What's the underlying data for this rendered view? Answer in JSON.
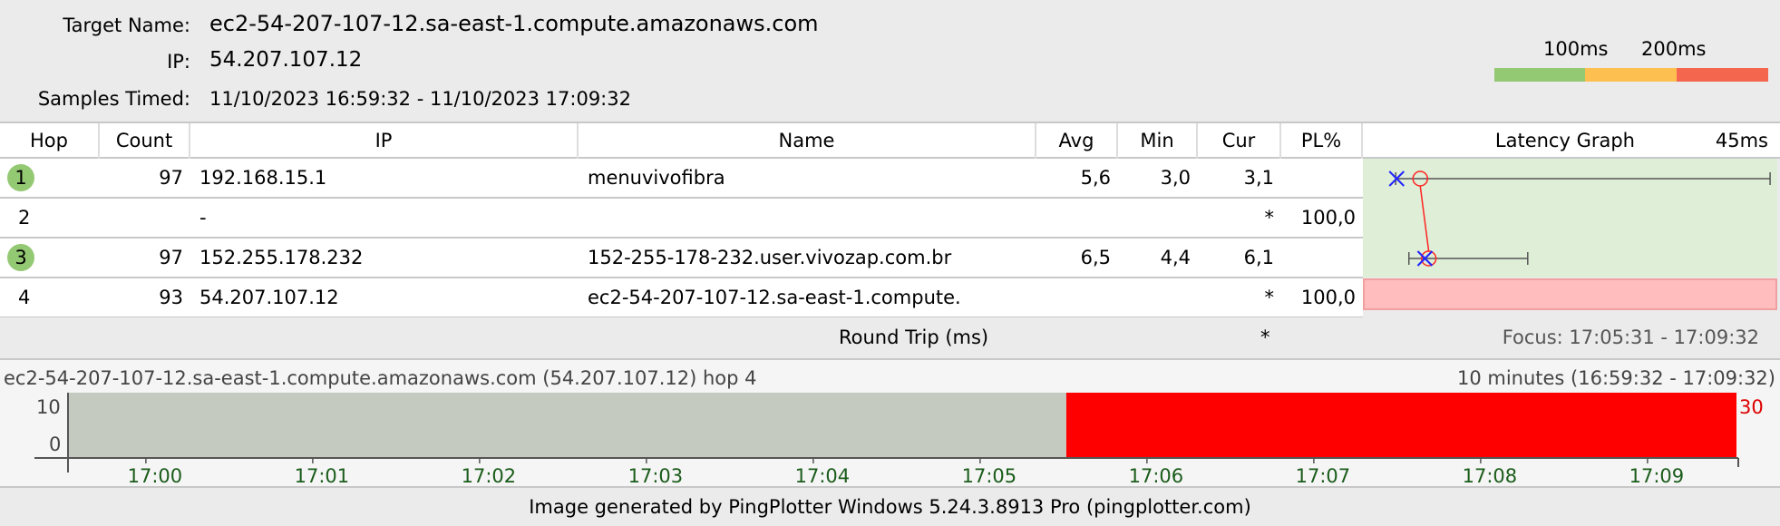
{
  "header": {
    "target_label": "Target Name:",
    "target_value": "ec2-54-207-107-12.sa-east-1.compute.amazonaws.com",
    "ip_label": "IP:",
    "ip_value": "54.207.107.12",
    "samples_label": "Samples Timed:",
    "samples_value": "11/10/2023 16:59:32 - 11/10/2023 17:09:32"
  },
  "legend": {
    "label_100": "100ms",
    "label_200": "200ms",
    "colors": [
      "#94c973",
      "#fdc050",
      "#f5664f"
    ]
  },
  "table": {
    "columns": [
      "Hop",
      "Count",
      "IP",
      "Name",
      "Avg",
      "Min",
      "Cur",
      "PL%",
      "Latency Graph"
    ],
    "graph_scale": "45ms",
    "rows": [
      {
        "hop": "1",
        "count": "97",
        "ip": "192.168.15.1",
        "name": "menuvivofibra",
        "avg": "5,6",
        "min": "3,0",
        "cur": "3,1",
        "pl": "",
        "max_ms": 42.7,
        "ok": true
      },
      {
        "hop": "2",
        "count": "",
        "ip": "-",
        "name": "",
        "avg": "",
        "min": "",
        "cur": "*",
        "pl": "100,0",
        "ok": false
      },
      {
        "hop": "3",
        "count": "97",
        "ip": "152.255.178.232",
        "name": "152-255-178-232.user.vivozap.com.br",
        "avg": "6,5",
        "min": "4,4",
        "cur": "6,1",
        "pl": "",
        "max_ms": 17,
        "ok": true
      },
      {
        "hop": "4",
        "count": "93",
        "ip": "54.207.107.12",
        "name": "ec2-54-207-107-12.sa-east-1.compute.",
        "avg": "",
        "min": "",
        "cur": "*",
        "pl": "100,0",
        "ok": false
      }
    ],
    "round_trip_label": "Round Trip (ms)",
    "round_trip_cur": "*",
    "focus": "Focus: 17:05:31 - 17:09:32"
  },
  "history": {
    "title": "ec2-54-207-107-12.sa-east-1.compute.amazonaws.com (54.207.107.12) hop 4",
    "range": "10 minutes (16:59:32 - 17:09:32)",
    "y_ticks": [
      "10",
      "0"
    ],
    "y_max_label": "30",
    "x_ticks": [
      "17:00",
      "17:01",
      "17:02",
      "17:03",
      "17:04",
      "17:05",
      "17:06",
      "17:07",
      "17:08",
      "17:09"
    ],
    "loss_start": "17:05:31",
    "colors": {
      "ok": "#c5cac0",
      "loss": "#ff0000"
    }
  },
  "footer": "Image generated by PingPlotter Windows 5.24.3.8913 Pro (pingplotter.com)"
}
